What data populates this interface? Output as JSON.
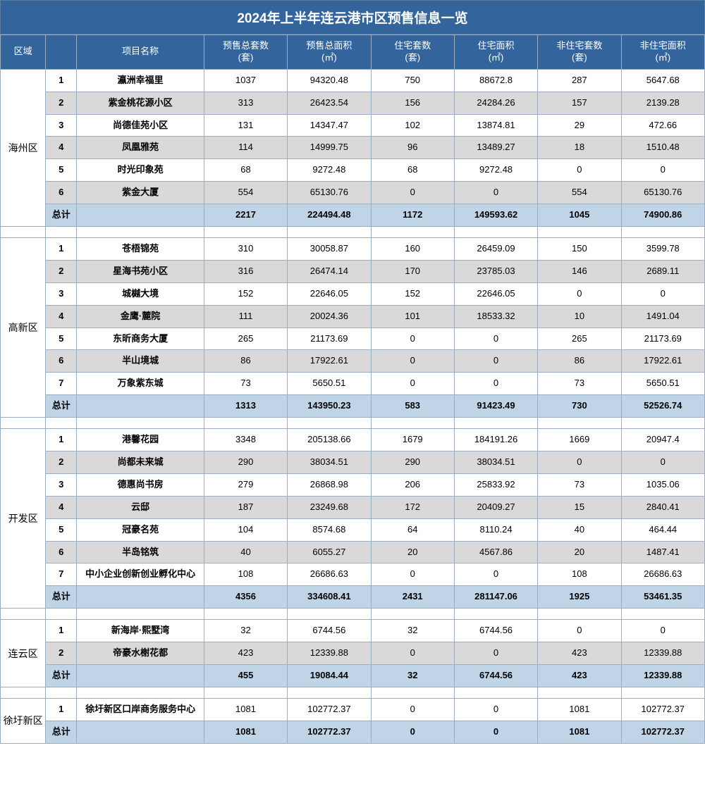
{
  "title": "2024年上半年连云港市区预售信息一览",
  "columns": {
    "region": "区域",
    "name": "项目名称",
    "c1": "预售总套数\n(套)",
    "c2": "预售总面积\n(㎡)",
    "c3": "住宅套数\n(套)",
    "c4": "住宅面积\n(㎡)",
    "c5": "非住宅套数\n(套)",
    "c6": "非住宅面积\n(㎡)"
  },
  "total_label": "总计",
  "colors": {
    "header_bg": "#33659c",
    "header_fg": "#ffffff",
    "row_even_bg": "#d9d9d9",
    "total_bg": "#c0d4e8",
    "border": "#9aadc2"
  },
  "sections": [
    {
      "region": "海州区",
      "rows": [
        {
          "idx": "1",
          "name": "瀛洲幸福里",
          "v": [
            "1037",
            "94320.48",
            "750",
            "88672.8",
            "287",
            "5647.68"
          ]
        },
        {
          "idx": "2",
          "name": "紫金桃花源小区",
          "v": [
            "313",
            "26423.54",
            "156",
            "24284.26",
            "157",
            "2139.28"
          ]
        },
        {
          "idx": "3",
          "name": "尚德佳苑小区",
          "v": [
            "131",
            "14347.47",
            "102",
            "13874.81",
            "29",
            "472.66"
          ]
        },
        {
          "idx": "4",
          "name": "凤凰雅苑",
          "v": [
            "114",
            "14999.75",
            "96",
            "13489.27",
            "18",
            "1510.48"
          ]
        },
        {
          "idx": "5",
          "name": "时光印象苑",
          "v": [
            "68",
            "9272.48",
            "68",
            "9272.48",
            "0",
            "0"
          ]
        },
        {
          "idx": "6",
          "name": "紫金大厦",
          "v": [
            "554",
            "65130.76",
            "0",
            "0",
            "554",
            "65130.76"
          ]
        }
      ],
      "total": [
        "2217",
        "224494.48",
        "1172",
        "149593.62",
        "1045",
        "74900.86"
      ]
    },
    {
      "region": "高新区",
      "rows": [
        {
          "idx": "1",
          "name": "苍梧锦苑",
          "v": [
            "310",
            "30058.87",
            "160",
            "26459.09",
            "150",
            "3599.78"
          ]
        },
        {
          "idx": "2",
          "name": "星海书苑小区",
          "v": [
            "316",
            "26474.14",
            "170",
            "23785.03",
            "146",
            "2689.11"
          ]
        },
        {
          "idx": "3",
          "name": "城樾大境",
          "v": [
            "152",
            "22646.05",
            "152",
            "22646.05",
            "0",
            "0"
          ]
        },
        {
          "idx": "4",
          "name": "金鹰·麓院",
          "v": [
            "111",
            "20024.36",
            "101",
            "18533.32",
            "10",
            "1491.04"
          ]
        },
        {
          "idx": "5",
          "name": "东昕商务大厦",
          "v": [
            "265",
            "21173.69",
            "0",
            "0",
            "265",
            "21173.69"
          ]
        },
        {
          "idx": "6",
          "name": "半山境城",
          "v": [
            "86",
            "17922.61",
            "0",
            "0",
            "86",
            "17922.61"
          ]
        },
        {
          "idx": "7",
          "name": "万象紫东城",
          "v": [
            "73",
            "5650.51",
            "0",
            "0",
            "73",
            "5650.51"
          ]
        }
      ],
      "total": [
        "1313",
        "143950.23",
        "583",
        "91423.49",
        "730",
        "52526.74"
      ]
    },
    {
      "region": "开发区",
      "rows": [
        {
          "idx": "1",
          "name": "港馨花园",
          "v": [
            "3348",
            "205138.66",
            "1679",
            "184191.26",
            "1669",
            "20947.4"
          ]
        },
        {
          "idx": "2",
          "name": "尚都未来城",
          "v": [
            "290",
            "38034.51",
            "290",
            "38034.51",
            "0",
            "0"
          ]
        },
        {
          "idx": "3",
          "name": "德惠尚书房",
          "v": [
            "279",
            "26868.98",
            "206",
            "25833.92",
            "73",
            "1035.06"
          ]
        },
        {
          "idx": "4",
          "name": "云邸",
          "v": [
            "187",
            "23249.68",
            "172",
            "20409.27",
            "15",
            "2840.41"
          ]
        },
        {
          "idx": "5",
          "name": "冠豪名苑",
          "v": [
            "104",
            "8574.68",
            "64",
            "8110.24",
            "40",
            "464.44"
          ]
        },
        {
          "idx": "6",
          "name": "半岛铭筑",
          "v": [
            "40",
            "6055.27",
            "20",
            "4567.86",
            "20",
            "1487.41"
          ]
        },
        {
          "idx": "7",
          "name": "中小企业创新创业孵化中心",
          "v": [
            "108",
            "26686.63",
            "0",
            "0",
            "108",
            "26686.63"
          ]
        }
      ],
      "total": [
        "4356",
        "334608.41",
        "2431",
        "281147.06",
        "1925",
        "53461.35"
      ]
    },
    {
      "region": "连云区",
      "rows": [
        {
          "idx": "1",
          "name": "新海岸·熙墅湾",
          "v": [
            "32",
            "6744.56",
            "32",
            "6744.56",
            "0",
            "0"
          ]
        },
        {
          "idx": "2",
          "name": "帝豪水榭花都",
          "v": [
            "423",
            "12339.88",
            "0",
            "0",
            "423",
            "12339.88"
          ]
        }
      ],
      "total": [
        "455",
        "19084.44",
        "32",
        "6744.56",
        "423",
        "12339.88"
      ]
    },
    {
      "region": "徐圩新区",
      "rows": [
        {
          "idx": "1",
          "name": "徐圩新区口岸商务服务中心",
          "v": [
            "1081",
            "102772.37",
            "0",
            "0",
            "1081",
            "102772.37"
          ]
        }
      ],
      "total": [
        "1081",
        "102772.37",
        "0",
        "0",
        "1081",
        "102772.37"
      ]
    }
  ]
}
